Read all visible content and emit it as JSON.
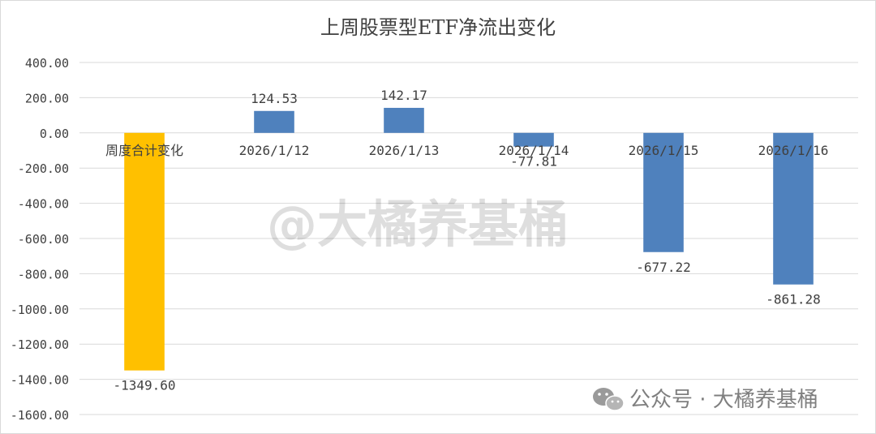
{
  "chart_data": {
    "type": "bar",
    "title": "上周股票型ETF净流出变化",
    "xlabel": "",
    "ylabel": "",
    "categories": [
      "周度合计变化",
      "2026/1/12",
      "2026/1/13",
      "2026/1/14",
      "2026/1/15",
      "2026/1/16"
    ],
    "values": [
      -1349.6,
      124.53,
      142.17,
      -77.81,
      -677.22,
      -861.28
    ],
    "value_labels": [
      "-1349.60",
      "124.53",
      "142.17",
      "-77.81",
      "-677.22",
      "-861.28"
    ],
    "bar_colors": [
      "#FFC000",
      "#4F81BD",
      "#4F81BD",
      "#4F81BD",
      "#4F81BD",
      "#4F81BD"
    ],
    "ylim": [
      -1600,
      400
    ],
    "yticks": [
      400,
      200,
      0,
      -200,
      -400,
      -600,
      -800,
      -1000,
      -1200,
      -1400,
      -1600
    ],
    "ytick_labels": [
      "400.00",
      "200.00",
      "0.00",
      "-200.00",
      "-400.00",
      "-600.00",
      "-800.00",
      "-1000.00",
      "-1200.00",
      "-1400.00",
      "-1600.00"
    ],
    "grid": true,
    "legend": "none"
  },
  "watermark": {
    "center_text": "@大橘养基桶",
    "footer_text": "公众号 · 大橘养基桶",
    "footer_icon": "wechat-icon"
  }
}
